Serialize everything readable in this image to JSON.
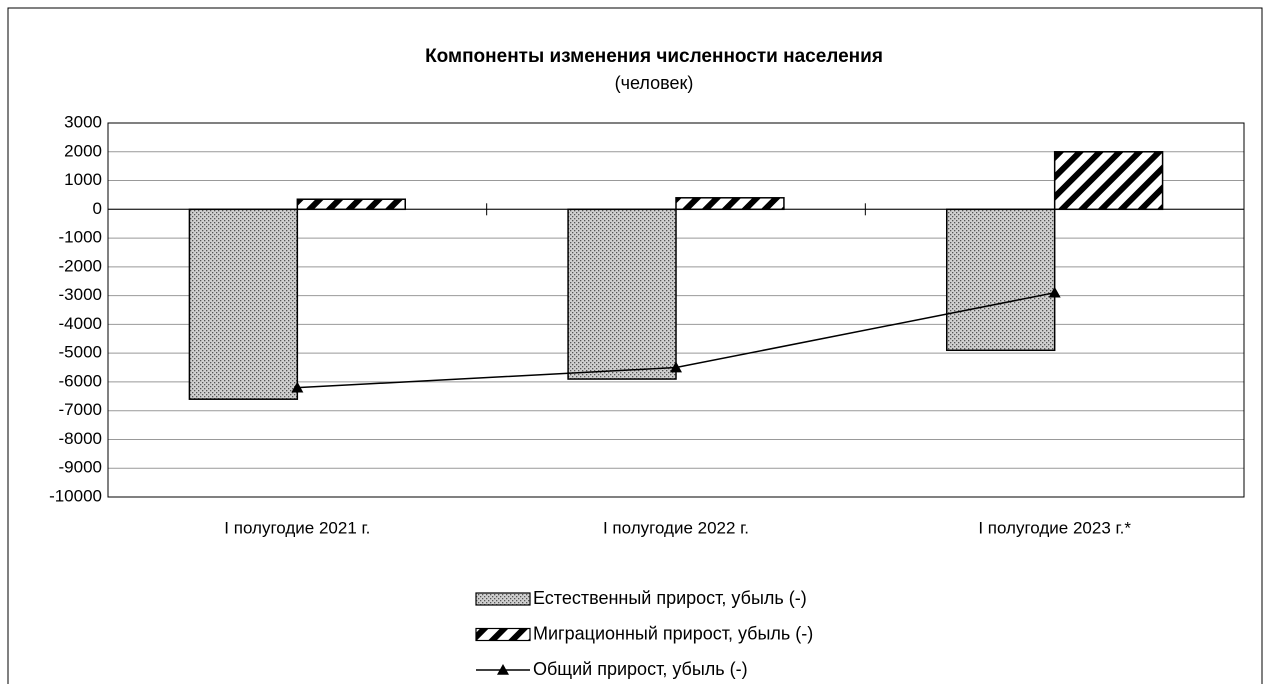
{
  "chart_data": {
    "type": "bar",
    "title": "Компоненты изменения численности населения",
    "subtitle": "(человек)",
    "categories": [
      "I полугодие 2021 г.",
      "I полугодие 2022 г.",
      "I полугодие 2023 г.*"
    ],
    "series": [
      {
        "name": "Естественный прирост, убыль (-)",
        "type": "bar",
        "pattern": "dots",
        "color": "#c8c8c8",
        "values": [
          -6600,
          -5900,
          -4900
        ]
      },
      {
        "name": "Миграционный прирост, убыль (-)",
        "type": "bar",
        "pattern": "hatch",
        "color": "#000000",
        "values": [
          350,
          400,
          2000
        ]
      },
      {
        "name": "Общий прирост, убыль (-)",
        "type": "line",
        "marker": "triangle",
        "color": "#000000",
        "values": [
          -6200,
          -5500,
          -2900
        ]
      }
    ],
    "ylim": [
      -10000,
      3000
    ],
    "yticks": [
      -10000,
      -9000,
      -8000,
      -7000,
      -6000,
      -5000,
      -4000,
      -3000,
      -2000,
      -1000,
      0,
      1000,
      2000,
      3000
    ],
    "grid": true,
    "legend": "bottom"
  }
}
